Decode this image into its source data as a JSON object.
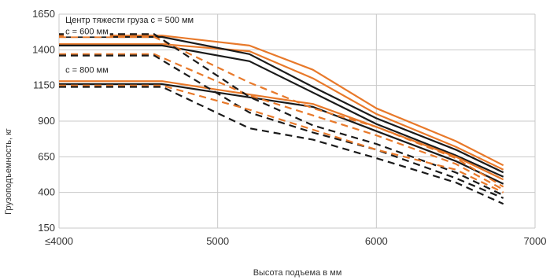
{
  "chart_data": {
    "type": "line",
    "title": "",
    "xlabel": "Высота подъема в мм",
    "ylabel": "Грузоподъемность, кг",
    "xlim": [
      4000,
      7000
    ],
    "ylim": [
      150,
      1650
    ],
    "x_tick_labels": [
      "≤4000",
      "5000",
      "6000",
      "7000"
    ],
    "x_tick_values": [
      4000,
      5000,
      6000,
      7000
    ],
    "y_tick_values": [
      150,
      400,
      650,
      900,
      1150,
      1400,
      1650
    ],
    "grid": true,
    "annotations": [
      {
        "text": "Центр тяжести груза с = 500 мм",
        "x": 4040,
        "y": 1590
      },
      {
        "text": "с = 600 мм",
        "x": 4040,
        "y": 1510
      },
      {
        "text": "с = 800 мм",
        "x": 4040,
        "y": 1240
      }
    ],
    "colors": {
      "orange": "#E8792A",
      "black": "#1a1a1a"
    },
    "series": [
      {
        "color": "#E8792A",
        "dash": false,
        "x": [
          4000,
          4650,
          5200,
          5600,
          6000,
          6500,
          6800
        ],
        "y": [
          1500,
          1500,
          1430,
          1260,
          990,
          760,
          590
        ]
      },
      {
        "color": "#E8792A",
        "dash": false,
        "x": [
          4000,
          4650,
          5200,
          5600,
          6000,
          6500,
          6800
        ],
        "y": [
          1440,
          1440,
          1390,
          1200,
          950,
          720,
          560
        ]
      },
      {
        "color": "#1a1a1a",
        "dash": false,
        "x": [
          4000,
          4650,
          5200,
          5600,
          6000,
          6500,
          6800
        ],
        "y": [
          1490,
          1490,
          1370,
          1140,
          920,
          700,
          540
        ]
      },
      {
        "color": "#1a1a1a",
        "dash": false,
        "x": [
          4000,
          4650,
          5200,
          5600,
          6000,
          6500,
          6800
        ],
        "y": [
          1430,
          1430,
          1320,
          1100,
          880,
          660,
          510
        ]
      },
      {
        "color": "#E8792A",
        "dash": false,
        "x": [
          4000,
          4650,
          5000,
          5600,
          6000,
          6500,
          6800
        ],
        "y": [
          1180,
          1180,
          1120,
          1020,
          860,
          650,
          490
        ]
      },
      {
        "color": "#1a1a1a",
        "dash": false,
        "x": [
          4000,
          4650,
          5000,
          5600,
          6000,
          6500,
          6800
        ],
        "y": [
          1160,
          1160,
          1100,
          1000,
          830,
          620,
          460
        ]
      },
      {
        "color": "#E8792A",
        "dash": true,
        "x": [
          4000,
          4600,
          5200,
          5600,
          6000,
          6500,
          6800
        ],
        "y": [
          1490,
          1490,
          1170,
          990,
          860,
          640,
          440
        ]
      },
      {
        "color": "#E8792A",
        "dash": true,
        "x": [
          4000,
          4600,
          5200,
          5600,
          6000,
          6500,
          6800
        ],
        "y": [
          1370,
          1370,
          1080,
          940,
          800,
          600,
          420
        ]
      },
      {
        "color": "#1a1a1a",
        "dash": true,
        "x": [
          4000,
          4600,
          5200,
          5600,
          6000,
          6500,
          6800
        ],
        "y": [
          1510,
          1510,
          1070,
          870,
          740,
          540,
          380
        ]
      },
      {
        "color": "#1a1a1a",
        "dash": true,
        "x": [
          4000,
          4600,
          5200,
          5600,
          6000,
          6500,
          6800
        ],
        "y": [
          1360,
          1360,
          960,
          820,
          700,
          500,
          360
        ]
      },
      {
        "color": "#E8792A",
        "dash": true,
        "x": [
          4000,
          4650,
          5200,
          5600,
          6000,
          6500,
          6800
        ],
        "y": [
          1150,
          1150,
          980,
          840,
          700,
          560,
          400
        ]
      },
      {
        "color": "#1a1a1a",
        "dash": true,
        "x": [
          4000,
          4650,
          5200,
          5600,
          6000,
          6500,
          6800
        ],
        "y": [
          1140,
          1140,
          850,
          770,
          640,
          470,
          320
        ]
      }
    ]
  }
}
